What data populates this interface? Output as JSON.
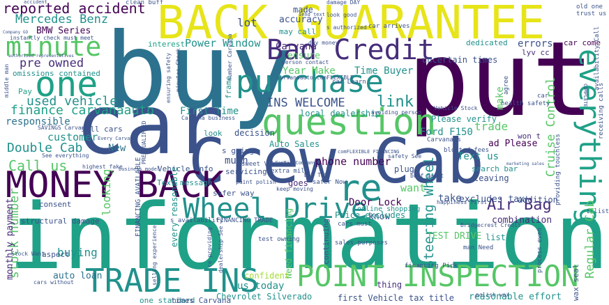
{
  "palette": {
    "yellow": "#e7e419",
    "lime": "#a5db36",
    "green": "#56c667",
    "teal": "#21918c",
    "cyan": "#1fa187",
    "blue": "#2c728e",
    "navy": "#3b528b",
    "indigo": "#472d7b",
    "purple": "#440154"
  },
  "words": [
    {
      "text": "BACK GUARANTEE",
      "color": "yellow"
    },
    {
      "text": "buy",
      "color": "blue"
    },
    {
      "text": "put",
      "color": "purple"
    },
    {
      "text": "information",
      "color": "cyan"
    },
    {
      "text": "car",
      "color": "navy"
    },
    {
      "text": "Crew Cab",
      "color": "navy"
    },
    {
      "text": "MONEY BACK",
      "color": "purple"
    },
    {
      "text": "Bad Credit",
      "color": "indigo"
    },
    {
      "text": "purchase",
      "color": "teal"
    },
    {
      "text": "question",
      "color": "green"
    },
    {
      "text": "everything",
      "color": "cyan"
    },
    {
      "text": "Wheel Drive",
      "color": "teal"
    },
    {
      "text": "POINT INSPECTION",
      "color": "green"
    },
    {
      "text": "TRADE INS",
      "color": "teal"
    },
    {
      "text": "minute",
      "color": "green"
    },
    {
      "text": "one",
      "color": "cyan"
    },
    {
      "text": "re",
      "color": "teal"
    },
    {
      "text": "reported accident",
      "color": "purple"
    },
    {
      "text": "Mercedes Benz",
      "color": "teal"
    },
    {
      "text": "pre owned",
      "color": "indigo"
    },
    {
      "text": "used vehicle",
      "color": "teal"
    },
    {
      "text": "finance carvanaauto",
      "color": "cyan"
    },
    {
      "text": "Double Cab",
      "color": "teal"
    },
    {
      "text": "Call us",
      "color": "green"
    },
    {
      "text": "stock number",
      "color": "green"
    },
    {
      "text": "INS WELCOME",
      "color": "navy"
    },
    {
      "text": "link",
      "color": "teal"
    },
    {
      "text": "Air Bag",
      "color": "indigo"
    },
    {
      "text": "Steering Wheel",
      "color": "teal"
    },
    {
      "text": "Regular Cab",
      "color": "green"
    },
    {
      "text": "Cruise Control",
      "color": "green"
    },
    {
      "text": "Power Window",
      "color": "teal"
    },
    {
      "text": "BMW Series",
      "color": "purple"
    },
    {
      "text": "omissions contained",
      "color": "teal"
    },
    {
      "text": "customer",
      "color": "teal"
    },
    {
      "text": "responsible",
      "color": "blue"
    },
    {
      "text": "Year Make",
      "color": "green"
    },
    {
      "text": "Time Buyer",
      "color": "teal"
    },
    {
      "text": "First Time",
      "color": "teal"
    },
    {
      "text": "lot",
      "color": "navy"
    },
    {
      "text": "accuracy",
      "color": "navy"
    },
    {
      "text": "made",
      "color": "navy"
    },
    {
      "text": "may call",
      "color": "teal"
    },
    {
      "text": "errors",
      "color": "navy"
    },
    {
      "text": "car come",
      "color": "purple"
    },
    {
      "text": "trade",
      "color": "green"
    },
    {
      "text": "make",
      "color": "green"
    },
    {
      "text": "phone number",
      "color": "purple"
    },
    {
      "text": "Ford F150",
      "color": "teal"
    },
    {
      "text": "Text us",
      "color": "teal"
    },
    {
      "text": "want",
      "color": "green"
    },
    {
      "text": "much",
      "color": "navy"
    },
    {
      "text": "looking",
      "color": "green"
    },
    {
      "text": "buying",
      "color": "teal"
    },
    {
      "text": "auto loan",
      "color": "blue"
    },
    {
      "text": "monthly payment",
      "color": "indigo"
    },
    {
      "text": "structural damage",
      "color": "navy"
    },
    {
      "text": "ensure",
      "color": "green"
    },
    {
      "text": "interest",
      "color": "cyan"
    },
    {
      "text": "Carvana",
      "color": "indigo"
    },
    {
      "text": "New",
      "color": "blue"
    },
    {
      "text": "us today",
      "color": "teal"
    },
    {
      "text": "Chevrolet Silverado",
      "color": "teal"
    },
    {
      "text": "first Vehicle",
      "color": "navy"
    },
    {
      "text": "tax title",
      "color": "navy"
    },
    {
      "text": "reasonable effort",
      "color": "teal"
    },
    {
      "text": "TEST DRIVE",
      "color": "green"
    },
    {
      "text": "Door Lock",
      "color": "purple"
    },
    {
      "text": "know",
      "color": "navy"
    },
    {
      "text": "Need financing",
      "color": "green"
    },
    {
      "text": "Auto Sales",
      "color": "teal"
    },
    {
      "text": "local dealership",
      "color": "teal"
    },
    {
      "text": "Please verify",
      "color": "teal"
    },
    {
      "text": "addition",
      "color": "navy"
    },
    {
      "text": "combination",
      "color": "indigo"
    },
    {
      "text": "take",
      "color": "navy"
    },
    {
      "text": "excludes tax",
      "color": "navy"
    },
    {
      "text": "confident",
      "color": "lime"
    },
    {
      "text": "thing",
      "color": "indigo"
    },
    {
      "text": "every reasonable",
      "color": "teal"
    },
    {
      "text": "list",
      "color": "teal"
    },
    {
      "text": "plug",
      "color": "navy"
    },
    {
      "text": "goes",
      "color": "indigo"
    },
    {
      "text": "leaving",
      "color": "navy"
    },
    {
      "text": "search bar",
      "color": "teal"
    },
    {
      "text": "decision",
      "color": "navy"
    },
    {
      "text": "s going",
      "color": "navy"
    },
    {
      "text": "servicing",
      "color": "navy"
    },
    {
      "text": "Vehicle Info",
      "color": "navy"
    },
    {
      "text": "Text message",
      "color": "teal"
    },
    {
      "text": "safer way",
      "color": "navy"
    },
    {
      "text": "sell cars",
      "color": "navy"
    },
    {
      "text": "look",
      "color": "teal"
    },
    {
      "text": "uncertain times",
      "color": "navy"
    },
    {
      "text": "dedicated",
      "color": "teal"
    },
    {
      "text": "lyv cc",
      "color": "indigo"
    },
    {
      "text": "ad Please",
      "color": "purple"
    },
    {
      "text": "won t",
      "color": "indigo"
    },
    {
      "text": "Price excludes",
      "color": "teal"
    },
    {
      "text": "continuing",
      "color": "navy"
    },
    {
      "text": "consent",
      "color": "navy"
    },
    {
      "text": "aspect",
      "color": "navy"
    },
    {
      "text": "one standard",
      "color": "teal"
    },
    {
      "text": "times Carvana",
      "color": "navy"
    },
    {
      "text": "wax seal",
      "color": "navy"
    },
    {
      "text": "Pay",
      "color": "cyan"
    },
    {
      "text": "frame",
      "color": "teal"
    },
    {
      "text": "Carvana s",
      "color": "navy"
    },
    {
      "text": "online shopping",
      "color": "teal"
    },
    {
      "text": "bloated fees",
      "color": "navy"
    },
    {
      "text": "financing Pick",
      "color": "navy"
    },
    {
      "text": "process even",
      "color": "navy"
    },
    {
      "text": "health safety",
      "color": "navy"
    },
    {
      "text": "receiving calls",
      "color": "navy"
    },
    {
      "text": "providing touchless",
      "color": "navy"
    },
    {
      "text": "sweet Vehicle",
      "color": "navy"
    },
    {
      "text": "extra mile",
      "color": "navy"
    },
    {
      "text": "safer Now",
      "color": "navy"
    },
    {
      "text": "cars must",
      "color": "navy"
    },
    {
      "text": "FINANCING TRADE",
      "color": "navy"
    },
    {
      "text": "s availability",
      "color": "navy"
    },
    {
      "text": "test owning",
      "color": "navy"
    },
    {
      "text": "sales purposes",
      "color": "navy"
    },
    {
      "text": "man Need",
      "color": "navy"
    },
    {
      "text": "Bridgecrest Credit",
      "color": "navy"
    },
    {
      "text": "t list",
      "color": "navy"
    },
    {
      "text": "car Learn",
      "color": "navy"
    },
    {
      "text": "car arrives",
      "color": "navy"
    },
    {
      "text": "old one",
      "color": "navy"
    },
    {
      "text": "trust us",
      "color": "navy"
    },
    {
      "text": "send text",
      "color": "navy"
    },
    {
      "text": "look good",
      "color": "navy"
    },
    {
      "text": "damage DAY",
      "color": "navy"
    },
    {
      "text": "clean buff",
      "color": "navy"
    },
    {
      "text": "day money",
      "color": "navy"
    },
    {
      "text": "s authorized",
      "color": "navy"
    },
    {
      "text": "person contact",
      "color": "navy"
    },
    {
      "text": "carvanaauto comFLEXIBLE",
      "color": "navy"
    },
    {
      "text": "number Carvana",
      "color": "navy"
    },
    {
      "text": "avoiding person",
      "color": "navy"
    },
    {
      "text": "Vehicle Stock",
      "color": "navy"
    },
    {
      "text": "paint polish",
      "color": "navy"
    },
    {
      "text": "buff paint",
      "color": "navy"
    },
    {
      "text": "DAY TEST",
      "color": "navy"
    },
    {
      "text": "keep moving",
      "color": "navy"
    },
    {
      "text": "Carvana business",
      "color": "navy"
    },
    {
      "text": "SAVINGS Carvana",
      "color": "navy"
    },
    {
      "text": "Every Carvana",
      "color": "navy"
    },
    {
      "text": "See everything",
      "color": "navy"
    },
    {
      "text": "highest fake",
      "color": "navy"
    },
    {
      "text": "business model",
      "color": "navy"
    },
    {
      "text": "PRE QUALIFIED",
      "color": "navy"
    },
    {
      "text": "free expenses",
      "color": "navy"
    },
    {
      "text": "minutes Check",
      "color": "navy"
    },
    {
      "text": "ensuring safety",
      "color": "navy"
    },
    {
      "text": "instantly check must meet",
      "color": "navy"
    },
    {
      "text": "authorized representatives",
      "color": "navy"
    },
    {
      "text": "Company GO",
      "color": "navy"
    },
    {
      "text": "middle man",
      "color": "navy"
    },
    {
      "text": "cars without",
      "color": "navy"
    },
    {
      "text": "Stock Want",
      "color": "navy"
    },
    {
      "text": "selling experience",
      "color": "navy"
    },
    {
      "text": "re providing",
      "color": "navy"
    },
    {
      "text": "dealership See",
      "color": "navy"
    },
    {
      "text": "polish wax",
      "color": "navy"
    },
    {
      "text": "happiness first",
      "color": "navy"
    },
    {
      "text": "marketing sales",
      "color": "navy"
    },
    {
      "text": "COMPLETE",
      "color": "navy"
    },
    {
      "text": "car",
      "color": "navy"
    },
    {
      "text": "agree",
      "color": "navy"
    },
    {
      "text": "FINANCING AVAILABLE",
      "color": "navy"
    },
    {
      "text": "availability Call",
      "color": "navy"
    },
    {
      "text": "comFLEXIBLE FINANCING",
      "color": "navy"
    },
    {
      "text": "safety See",
      "color": "navy"
    },
    {
      "text": "Credit Company",
      "color": "navy"
    },
    {
      "text": "accident",
      "color": "navy"
    }
  ]
}
